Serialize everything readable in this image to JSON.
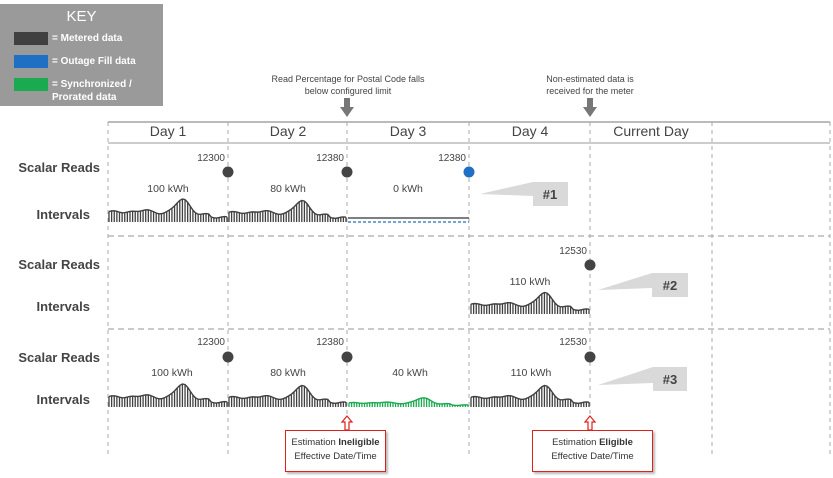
{
  "key": {
    "title": "KEY",
    "items": [
      {
        "label": "= Metered data",
        "color": "#404040"
      },
      {
        "label": "= Outage Fill data",
        "color": "#1f6fc4"
      },
      {
        "label": "= Synchronized / Prorated data",
        "color": "#1aaa50"
      }
    ]
  },
  "notes": {
    "read_percentage": "Read Percentage for Postal Code falls below configured limit",
    "non_estimated": "Non-estimated data is received for the meter"
  },
  "days": [
    "Day 1",
    "Day 2",
    "Day 3",
    "Day 4",
    "Current Day"
  ],
  "row_labels": {
    "scalar": "Scalar Reads",
    "intervals": "Intervals"
  },
  "scenarios": [
    {
      "id": "#1",
      "reads": [
        "12300",
        "12380",
        "12380"
      ],
      "kwh": [
        "100 kWh",
        "80 kWh",
        "0 kWh"
      ]
    },
    {
      "id": "#2",
      "reads": [
        "12530"
      ],
      "kwh": [
        "110 kWh"
      ]
    },
    {
      "id": "#3",
      "reads": [
        "12300",
        "12380",
        "12530"
      ],
      "kwh": [
        "100 kWh",
        "80 kWh",
        "40 kWh",
        "110 kWh"
      ]
    }
  ],
  "boxes": {
    "ineligible": {
      "pre": "Estimation ",
      "bold": "Ineligible",
      "line2": "Effective Date/Time"
    },
    "eligible": {
      "pre": "Estimation ",
      "bold": "Eligible",
      "line2": "Effective Date/Time"
    }
  },
  "colors": {
    "metered": "#404040",
    "outage": "#1f6fc4",
    "sync": "#1aaa50",
    "alert": "#e0201b"
  }
}
